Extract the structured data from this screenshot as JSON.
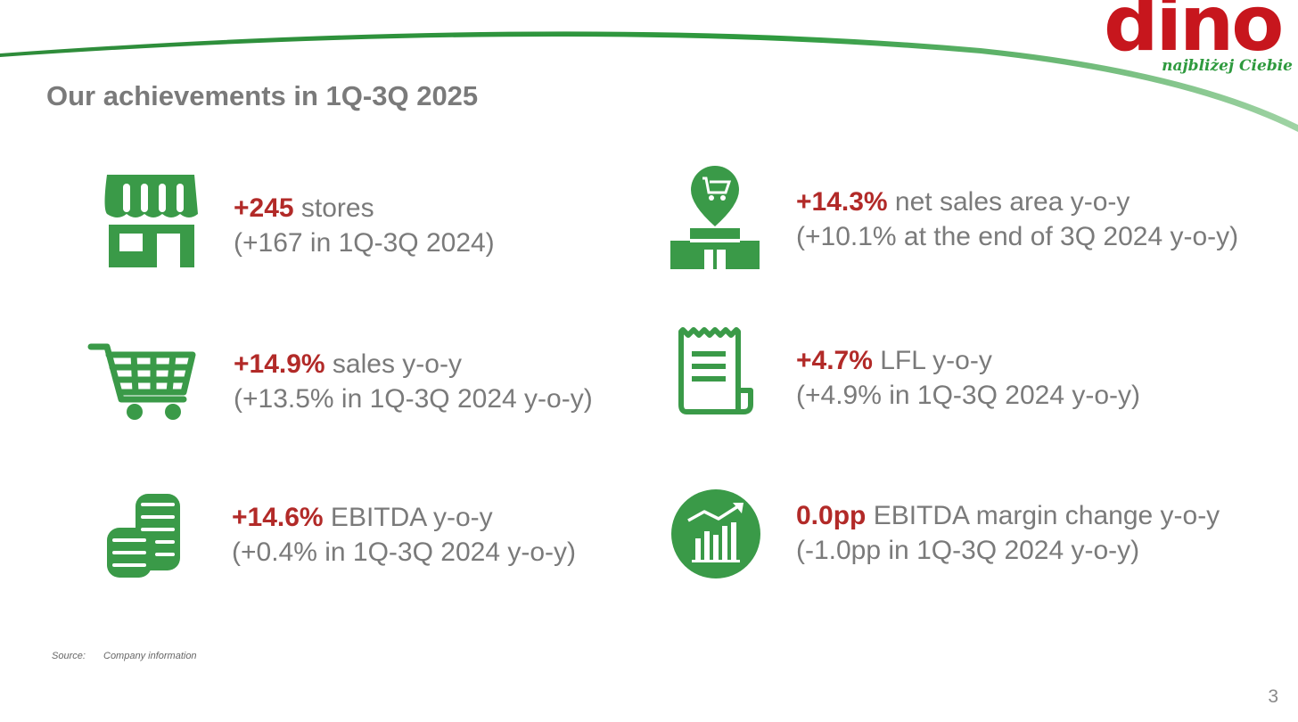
{
  "brand": {
    "logo_word": "dino",
    "tagline": "najbliżej Ciebie",
    "colors": {
      "red": "#c7161d",
      "green": "#2e9a3e",
      "highlight": "#b22a28",
      "text": "#7a7a7a"
    }
  },
  "title": "Our achievements in 1Q-3Q 2025",
  "items": [
    {
      "icon": "store-icon",
      "highlight": "+245",
      "line1_rest": " stores",
      "line2": "(+167 in 1Q-3Q 2024)"
    },
    {
      "icon": "store-location-cart-icon",
      "highlight": "+14.3%",
      "line1_rest": " net sales area y-o-y",
      "line2": "(+10.1% at the end of 3Q 2024 y-o-y)"
    },
    {
      "icon": "shopping-cart-icon",
      "highlight": "+14.9%",
      "line1_rest": " sales y-o-y",
      "line2": "(+13.5% in 1Q-3Q 2024 y-o-y)"
    },
    {
      "icon": "receipt-icon",
      "highlight": "+4.7%",
      "line1_rest": " LFL y-o-y",
      "line2": "(+4.9% in 1Q-3Q 2024 y-o-y)"
    },
    {
      "icon": "coins-icon",
      "highlight": "+14.6%",
      "line1_rest": " EBITDA y-o-y",
      "line2": "(+0.4% in 1Q-3Q 2024 y-o-y)"
    },
    {
      "icon": "growth-chart-icon",
      "highlight": "0.0pp",
      "line1_rest": " EBITDA margin change y-o-y",
      "line2": "(-1.0pp in 1Q-3Q 2024 y-o-y)"
    }
  ],
  "footer": {
    "source_label": "Source:",
    "source_text": "Company information"
  },
  "page_number": "3"
}
